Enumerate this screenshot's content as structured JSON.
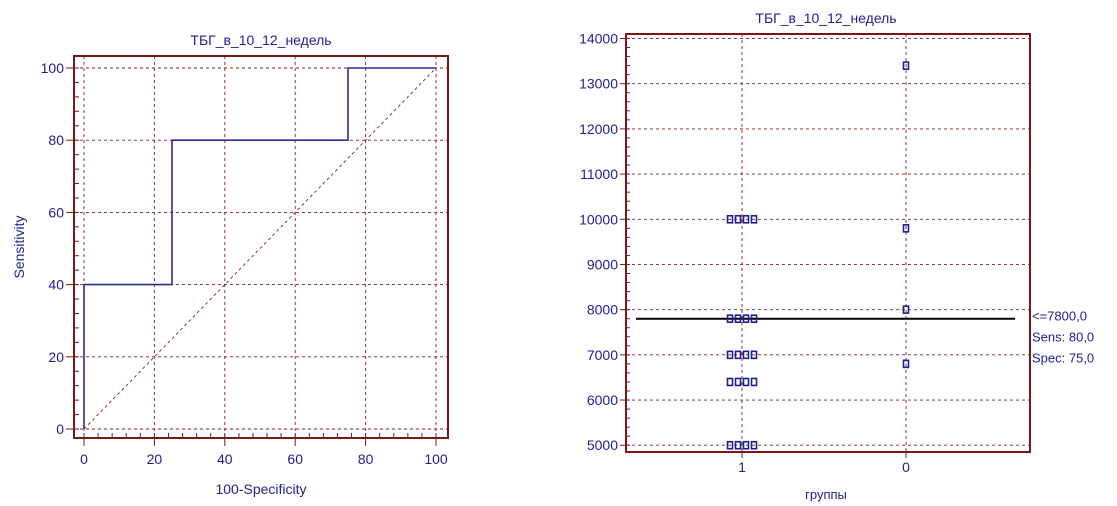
{
  "chart_data": [
    {
      "type": "line",
      "title": "ТБГ_в_10_12_недель",
      "xlabel": "100-Specificity",
      "ylabel": "Sensitivity",
      "xlim": [
        0,
        100
      ],
      "ylim": [
        0,
        100
      ],
      "x_ticks": [
        "0",
        "20",
        "40",
        "60",
        "80",
        "100"
      ],
      "y_ticks": [
        "0",
        "20",
        "40",
        "60",
        "80",
        "100"
      ],
      "grid": true,
      "series": [
        {
          "x": [
            0,
            0,
            25,
            25,
            75,
            75,
            100
          ],
          "y": [
            0,
            40,
            40,
            80,
            80,
            100,
            100
          ]
        }
      ],
      "reference_line": {
        "x": [
          0,
          100
        ],
        "y": [
          0,
          100
        ],
        "style": "dotted"
      },
      "colors": {
        "series": "#2b2b8f",
        "reference": "#8b1a1a",
        "frame": "#7a1616",
        "text": "#1f1f8f"
      }
    },
    {
      "type": "scatter",
      "title": "ТБГ_в_10_12_недель",
      "xlabel": "группы",
      "ylabel": "",
      "categories": [
        "1",
        "0"
      ],
      "ylim": [
        4850,
        14100
      ],
      "y_ticks": [
        "5000",
        "6000",
        "7000",
        "8000",
        "9000",
        "10000",
        "11000",
        "12000",
        "13000",
        "14000"
      ],
      "grid": true,
      "groups": [
        {
          "category": "1",
          "values": [
            5000,
            5000,
            5000,
            5000,
            6400,
            6400,
            6400,
            6400,
            7000,
            7000,
            7000,
            7000,
            7800,
            7800,
            7800,
            7800,
            10000,
            10000,
            10000,
            10000
          ]
        },
        {
          "category": "0",
          "values": [
            6800,
            8000,
            9800,
            13400
          ]
        }
      ],
      "cutoff": {
        "value": 7800,
        "labels": [
          "<=7800,0",
          "Sens: 80,0",
          "Spec: 75,0"
        ]
      },
      "colors": {
        "points": "#1f1f8f",
        "cutoff": "#000000",
        "frame": "#7a1616",
        "text": "#1f1f8f"
      }
    }
  ]
}
